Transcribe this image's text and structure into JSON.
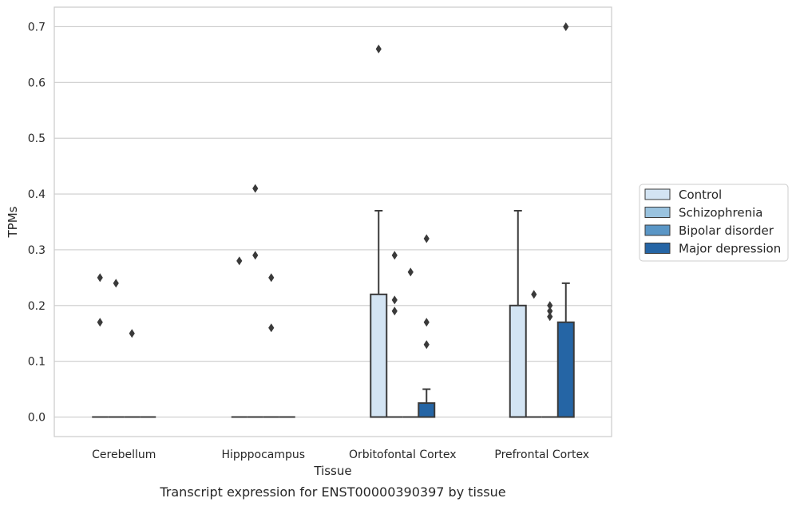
{
  "caption": "Transcript expression for ENST00000390397 by tissue",
  "chart_data": {
    "type": "box",
    "xlabel": "Tissue",
    "ylabel": "TPMs",
    "categories": [
      "Cerebellum",
      "Hipppocampus",
      "Orbitofontal Cortex",
      "Prefrontal Cortex"
    ],
    "ylim": [
      -0.035,
      0.735
    ],
    "yticks": [
      "0.0",
      "0.1",
      "0.2",
      "0.3",
      "0.4",
      "0.5",
      "0.6",
      "0.7"
    ],
    "grid": "horizontal",
    "legend_position": "right",
    "series": [
      {
        "name": "Control",
        "color": "#d3e4f3",
        "boxes": [
          {
            "q1": 0,
            "median": 0,
            "q3": 0,
            "whisker_low": 0,
            "whisker_high": 0,
            "outliers": [
              0.25,
              0.17
            ]
          },
          {
            "q1": 0,
            "median": 0,
            "q3": 0,
            "whisker_low": 0,
            "whisker_high": 0,
            "outliers": [
              0.28
            ]
          },
          {
            "q1": 0,
            "median": 0,
            "q3": 0.22,
            "whisker_low": 0,
            "whisker_high": 0.37,
            "outliers": [
              0.66
            ]
          },
          {
            "q1": 0,
            "median": 0,
            "q3": 0.2,
            "whisker_low": 0,
            "whisker_high": 0.37,
            "outliers": []
          }
        ]
      },
      {
        "name": "Schizophrenia",
        "color": "#9ac3df",
        "boxes": [
          {
            "q1": 0,
            "median": 0,
            "q3": 0,
            "whisker_low": 0,
            "whisker_high": 0,
            "outliers": [
              0.24
            ]
          },
          {
            "q1": 0,
            "median": 0,
            "q3": 0,
            "whisker_low": 0,
            "whisker_high": 0,
            "outliers": [
              0.41,
              0.29
            ]
          },
          {
            "q1": 0,
            "median": 0,
            "q3": 0,
            "whisker_low": 0,
            "whisker_high": 0,
            "outliers": [
              0.29,
              0.21,
              0.19
            ]
          },
          {
            "q1": 0,
            "median": 0,
            "q3": 0,
            "whisker_low": 0,
            "whisker_high": 0,
            "outliers": [
              0.22
            ]
          }
        ]
      },
      {
        "name": "Bipolar disorder",
        "color": "#5a96c6",
        "boxes": [
          {
            "q1": 0,
            "median": 0,
            "q3": 0,
            "whisker_low": 0,
            "whisker_high": 0,
            "outliers": [
              0.15
            ]
          },
          {
            "q1": 0,
            "median": 0,
            "q3": 0,
            "whisker_low": 0,
            "whisker_high": 0,
            "outliers": [
              0.25,
              0.16
            ]
          },
          {
            "q1": 0,
            "median": 0,
            "q3": 0,
            "whisker_low": 0,
            "whisker_high": 0,
            "outliers": [
              0.26
            ]
          },
          {
            "q1": 0,
            "median": 0,
            "q3": 0,
            "whisker_low": 0,
            "whisker_high": 0,
            "outliers": [
              0.2,
              0.19,
              0.18
            ]
          }
        ]
      },
      {
        "name": "Major depression",
        "color": "#2565a5",
        "boxes": [
          {
            "q1": 0,
            "median": 0,
            "q3": 0,
            "whisker_low": 0,
            "whisker_high": 0,
            "outliers": []
          },
          {
            "q1": 0,
            "median": 0,
            "q3": 0,
            "whisker_low": 0,
            "whisker_high": 0,
            "outliers": []
          },
          {
            "q1": 0,
            "median": 0,
            "q3": 0.025,
            "whisker_low": 0,
            "whisker_high": 0.05,
            "outliers": [
              0.32,
              0.17,
              0.13
            ]
          },
          {
            "q1": 0,
            "median": 0,
            "q3": 0.17,
            "whisker_low": 0,
            "whisker_high": 0.24,
            "outliers": [
              0.7
            ]
          }
        ]
      }
    ]
  }
}
